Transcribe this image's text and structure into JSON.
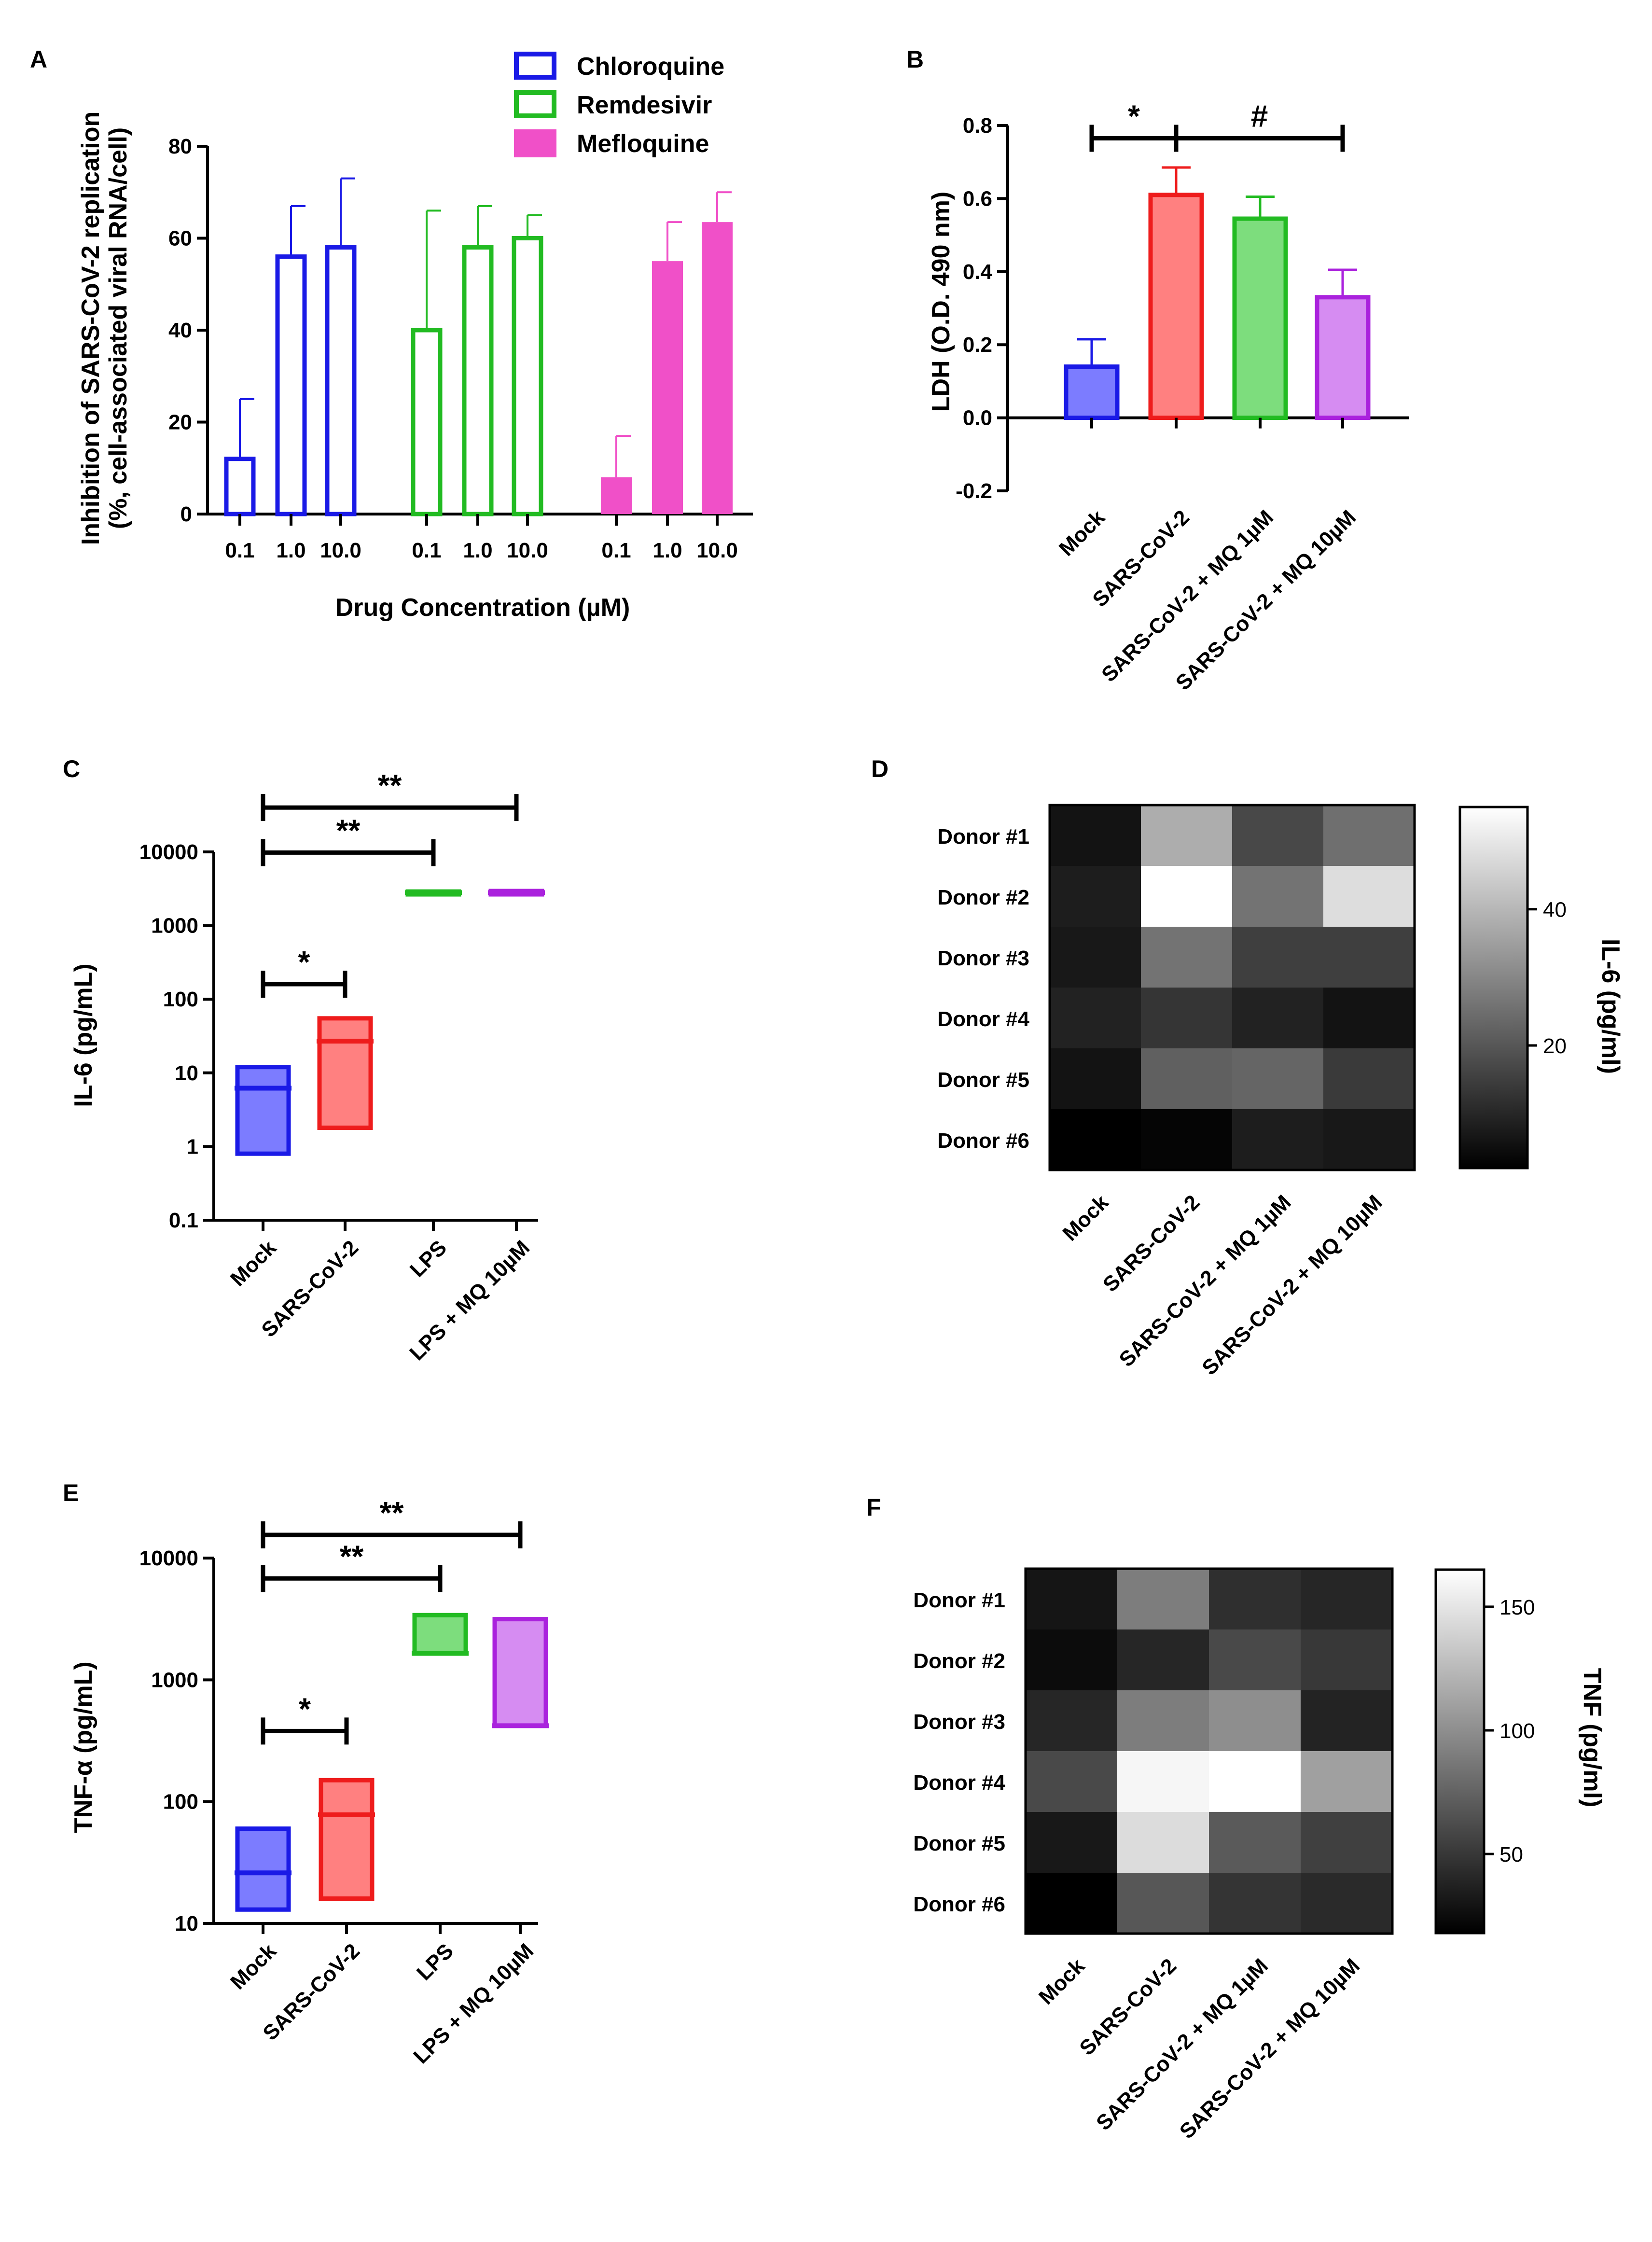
{
  "colors": {
    "blue": "#1a1ae6",
    "blue_fill": "#7c7cff",
    "red": "#ee1c1c",
    "red_fill": "#ff8080",
    "green": "#22bb22",
    "green_fill": "#7ddd7d",
    "purple": "#aa22dd",
    "purple_fill": "#d68cf2",
    "magenta": "#f050c8"
  },
  "chart_data": [
    {
      "panel": "A",
      "type": "bar",
      "xlabel": "Drug Concentration (µM)",
      "ylabel": [
        "Inhibition of SARS-CoV-2 replication",
        "(%, cell-associated viral  RNA/cell)"
      ],
      "ylim": [
        0,
        80
      ],
      "yticks": [
        0,
        20,
        40,
        60,
        80
      ],
      "categories": [
        "0.1",
        "1.0",
        "10.0"
      ],
      "series": [
        {
          "name": "Chloroquine",
          "color": "#1a1ae6",
          "filled": false,
          "values": [
            12,
            56,
            58
          ],
          "errors": [
            13,
            11,
            15
          ]
        },
        {
          "name": "Remdesivir",
          "color": "#22bb22",
          "filled": false,
          "values": [
            40,
            58,
            60
          ],
          "errors": [
            26,
            9,
            5
          ]
        },
        {
          "name": "Mefloquine",
          "color": "#f050c8",
          "filled": true,
          "values": [
            8,
            55,
            63.5
          ],
          "errors": [
            9,
            8.5,
            6.5
          ]
        }
      ]
    },
    {
      "panel": "B",
      "type": "bar",
      "ylabel": "LDH (O.D. 490 nm)",
      "ylim": [
        -0.2,
        0.8
      ],
      "yticks": [
        "-0.2",
        "0.0",
        "0.2",
        "0.4",
        "0.6",
        "0.8"
      ],
      "categories": [
        "Mock",
        "SARS-CoV-2",
        "SARS-CoV-2 + MQ 1µM",
        "SARS-CoV-2 + MQ 10µM"
      ],
      "values": [
        0.14,
        0.61,
        0.545,
        0.33
      ],
      "errors": [
        0.075,
        0.075,
        0.06,
        0.075
      ],
      "annotations": [
        {
          "from": 0,
          "to": 1,
          "label": "*",
          "y": 0.765
        },
        {
          "from": 1,
          "to": 3,
          "label": "#",
          "y": 0.765
        }
      ]
    },
    {
      "panel": "C",
      "type": "floating-bar",
      "scale": "log",
      "ylabel": "IL-6 (pg/mL)",
      "ylim": [
        0.1,
        10000
      ],
      "yticks": [
        "0.1",
        "1",
        "10",
        "100",
        "1000",
        "10000"
      ],
      "categories": [
        "Mock",
        "SARS-CoV-2",
        "LPS",
        "LPS + MQ 10µM"
      ],
      "min": [
        0.8,
        1.8,
        2700,
        2650
      ],
      "max": [
        12,
        55,
        2900,
        2950
      ],
      "median": [
        6.2,
        27,
        2800,
        2800
      ],
      "annotations": [
        {
          "from": 0,
          "to": 1,
          "label": "*",
          "y": 160
        },
        {
          "from": 0,
          "to": 2,
          "label": "**",
          "y": 9800
        },
        {
          "from": 0,
          "to": 3,
          "label": "**",
          "y": 40000
        }
      ]
    },
    {
      "panel": "D",
      "type": "heatmap",
      "rows": [
        "Donor #1",
        "Donor #2",
        "Donor #3",
        "Donor #4",
        "Donor #5",
        "Donor #6"
      ],
      "cols": [
        "Mock",
        "SARS-CoV-2",
        "SARS-CoV-2 + MQ 1µM",
        "SARS-CoV-2 + MQ 10µM"
      ],
      "values": [
        [
          6,
          38,
          17,
          25
        ],
        [
          8,
          55,
          26,
          48
        ],
        [
          7,
          26,
          15,
          15
        ],
        [
          9,
          13,
          9,
          6
        ],
        [
          6,
          22,
          23,
          14
        ],
        [
          2,
          3,
          8,
          7
        ]
      ],
      "vmin": 2,
      "vmax": 55,
      "colorbar_label": "IL-6 (pg/ml)",
      "colorbar_ticks": [
        "20",
        "40"
      ]
    },
    {
      "panel": "E",
      "type": "floating-bar",
      "scale": "log",
      "ylabel": "TNF-α (pg/mL)",
      "ylim": [
        10,
        10000
      ],
      "yticks": [
        "10",
        "100",
        "1000",
        "10000"
      ],
      "categories": [
        "Mock",
        "SARS-CoV-2",
        "LPS",
        "LPS + MQ 10µM"
      ],
      "min": [
        13,
        16,
        1650,
        420
      ],
      "max": [
        60,
        150,
        3400,
        3150
      ],
      "median": [
        26,
        78,
        1650,
        420
      ],
      "annotations": [
        {
          "from": 0,
          "to": 1,
          "label": "*",
          "y": 380
        },
        {
          "from": 0,
          "to": 2,
          "label": "**",
          "y": 6800
        },
        {
          "from": 0,
          "to": 3,
          "label": "**",
          "y": 15500
        }
      ]
    },
    {
      "panel": "F",
      "type": "heatmap",
      "rows": [
        "Donor #1",
        "Donor #2",
        "Donor #3",
        "Donor #4",
        "Donor #5",
        "Donor #6"
      ],
      "cols": [
        "Mock",
        "SARS-CoV-2",
        "SARS-CoV-2 + MQ 1µM",
        "SARS-CoV-2 + MQ 10µM"
      ],
      "values": [
        [
          30,
          90,
          45,
          40
        ],
        [
          25,
          40,
          60,
          50
        ],
        [
          40,
          90,
          100,
          38
        ],
        [
          60,
          160,
          165,
          110
        ],
        [
          32,
          145,
          70,
          55
        ],
        [
          18,
          68,
          48,
          42
        ]
      ],
      "vmin": 18,
      "vmax": 165,
      "colorbar_label": "TNF (pg/ml)",
      "colorbar_ticks": [
        "50",
        "100",
        "150"
      ]
    }
  ]
}
